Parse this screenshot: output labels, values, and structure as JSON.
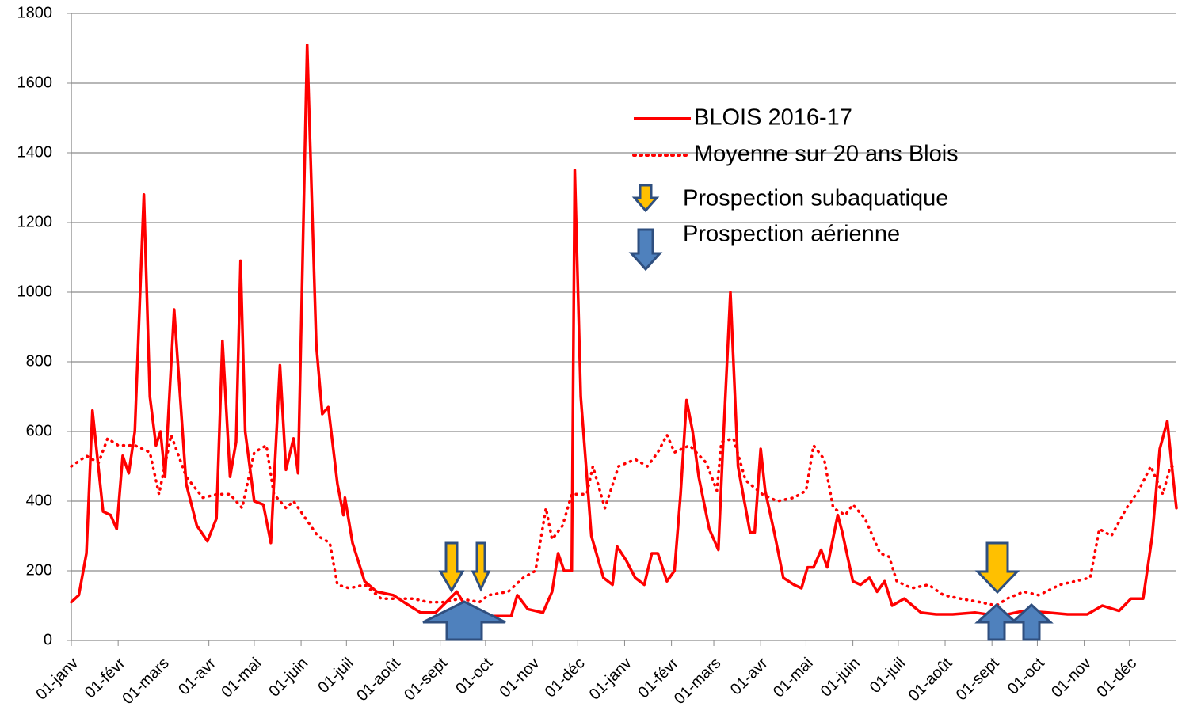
{
  "chart_data": {
    "type": "line",
    "xlim": [
      0,
      731
    ],
    "xticks": [
      {
        "value": 0,
        "label": "01-janv"
      },
      {
        "value": 31,
        "label": "01-févr"
      },
      {
        "value": 60,
        "label": "01-mars"
      },
      {
        "value": 91,
        "label": "01-avr"
      },
      {
        "value": 121,
        "label": "01-mai"
      },
      {
        "value": 152,
        "label": "01-juin"
      },
      {
        "value": 182,
        "label": "01-juil"
      },
      {
        "value": 213,
        "label": "01-août"
      },
      {
        "value": 244,
        "label": "01-sept"
      },
      {
        "value": 274,
        "label": "01-oct"
      },
      {
        "value": 305,
        "label": "01-nov"
      },
      {
        "value": 335,
        "label": "01-déc"
      },
      {
        "value": 366,
        "label": "01-janv"
      },
      {
        "value": 397,
        "label": "01-févr"
      },
      {
        "value": 425,
        "label": "01-mars"
      },
      {
        "value": 456,
        "label": "01-avr"
      },
      {
        "value": 486,
        "label": "01-mai"
      },
      {
        "value": 517,
        "label": "01-juin"
      },
      {
        "value": 547,
        "label": "01-juil"
      },
      {
        "value": 578,
        "label": "01-août"
      },
      {
        "value": 609,
        "label": "01-sept"
      },
      {
        "value": 639,
        "label": "01-oct"
      },
      {
        "value": 670,
        "label": "01-nov"
      },
      {
        "value": 700,
        "label": "01-déc"
      }
    ],
    "ylim": [
      0,
      1800
    ],
    "yticks": [
      0,
      200,
      400,
      600,
      800,
      1000,
      1200,
      1400,
      1600,
      1800
    ],
    "grid": true,
    "series": [
      {
        "name": "BLOIS 2016-17",
        "color": "#ff0000",
        "dash": "solid",
        "x": [
          0,
          5,
          10,
          14,
          21,
          26,
          30,
          34,
          38,
          42,
          48,
          52,
          56,
          59,
          62,
          68,
          72,
          76,
          83,
          90,
          96,
          100,
          105,
          109,
          112,
          115,
          121,
          127,
          132,
          138,
          142,
          147,
          150,
          156,
          162,
          166,
          170,
          176,
          180,
          181,
          186,
          194,
          202,
          213,
          220,
          231,
          241,
          255,
          262,
          278,
          291,
          295,
          302,
          312,
          318,
          322,
          326,
          331,
          333,
          337,
          344,
          352,
          358,
          361,
          367,
          373,
          379,
          384,
          388,
          394,
          399,
          403,
          407,
          411,
          415,
          422,
          428,
          431,
          436,
          441,
          449,
          452,
          456,
          459,
          465,
          471,
          478,
          483,
          487,
          491,
          496,
          500,
          507,
          510,
          517,
          522,
          528,
          533,
          538,
          543,
          551,
          562,
          572,
          583,
          598,
          614,
          630,
          646,
          659,
          672,
          682,
          693,
          701,
          709,
          715,
          720,
          725,
          728,
          731
        ],
        "values": [
          110,
          130,
          250,
          660,
          370,
          360,
          320,
          530,
          480,
          600,
          1280,
          700,
          560,
          600,
          470,
          950,
          700,
          450,
          330,
          285,
          350,
          860,
          470,
          570,
          1090,
          600,
          400,
          390,
          280,
          790,
          490,
          580,
          480,
          1710,
          850,
          650,
          670,
          450,
          360,
          410,
          280,
          170,
          140,
          130,
          110,
          80,
          80,
          140,
          90,
          70,
          70,
          130,
          90,
          80,
          140,
          250,
          200,
          200,
          1350,
          700,
          300,
          180,
          160,
          270,
          230,
          180,
          160,
          250,
          250,
          170,
          200,
          420,
          690,
          600,
          470,
          320,
          260,
          550,
          1000,
          500,
          310,
          310,
          550,
          430,
          310,
          180,
          160,
          150,
          210,
          210,
          260,
          210,
          360,
          310,
          170,
          160,
          180,
          140,
          170,
          100,
          120,
          80,
          75,
          75,
          80,
          70,
          85,
          80,
          75,
          75,
          100,
          85,
          120,
          120,
          300,
          550,
          630,
          500,
          380
        ]
      },
      {
        "name": "Moyenne sur 20 ans  Blois",
        "color": "#ff0000",
        "dash": "dotted",
        "x": [
          0,
          10,
          18,
          24,
          31,
          42,
          52,
          58,
          66,
          76,
          87,
          97,
          105,
          113,
          121,
          129,
          134,
          142,
          147,
          155,
          163,
          171,
          176,
          184,
          194,
          205,
          215,
          226,
          236,
          247,
          257,
          270,
          276,
          289,
          299,
          307,
          314,
          318,
          325,
          331,
          341,
          345,
          353,
          362,
          373,
          381,
          388,
          394,
          399,
          409,
          420,
          427,
          430,
          438,
          446,
          457,
          467,
          478,
          486,
          491,
          498,
          504,
          512,
          517,
          525,
          535,
          541,
          546,
          556,
          567,
          577,
          588,
          601,
          612,
          619,
          630,
          640,
          654,
          664,
          674,
          680,
          688,
          698,
          706,
          714,
          722,
          727,
          731
        ],
        "values": [
          500,
          530,
          510,
          580,
          560,
          560,
          540,
          420,
          590,
          470,
          410,
          420,
          420,
          380,
          540,
          560,
          420,
          380,
          400,
          350,
          300,
          280,
          160,
          150,
          160,
          120,
          120,
          120,
          110,
          110,
          120,
          110,
          130,
          140,
          180,
          200,
          380,
          290,
          330,
          420,
          420,
          500,
          380,
          500,
          520,
          500,
          540,
          590,
          540,
          560,
          510,
          430,
          570,
          580,
          460,
          420,
          400,
          410,
          430,
          560,
          520,
          380,
          360,
          390,
          350,
          250,
          240,
          170,
          150,
          160,
          130,
          120,
          110,
          100,
          120,
          140,
          130,
          160,
          170,
          180,
          320,
          300,
          380,
          430,
          500,
          420,
          500,
          500
        ]
      }
    ],
    "legend_extra": [
      "Prospection subaquatique",
      "Prospection aérienne"
    ]
  }
}
